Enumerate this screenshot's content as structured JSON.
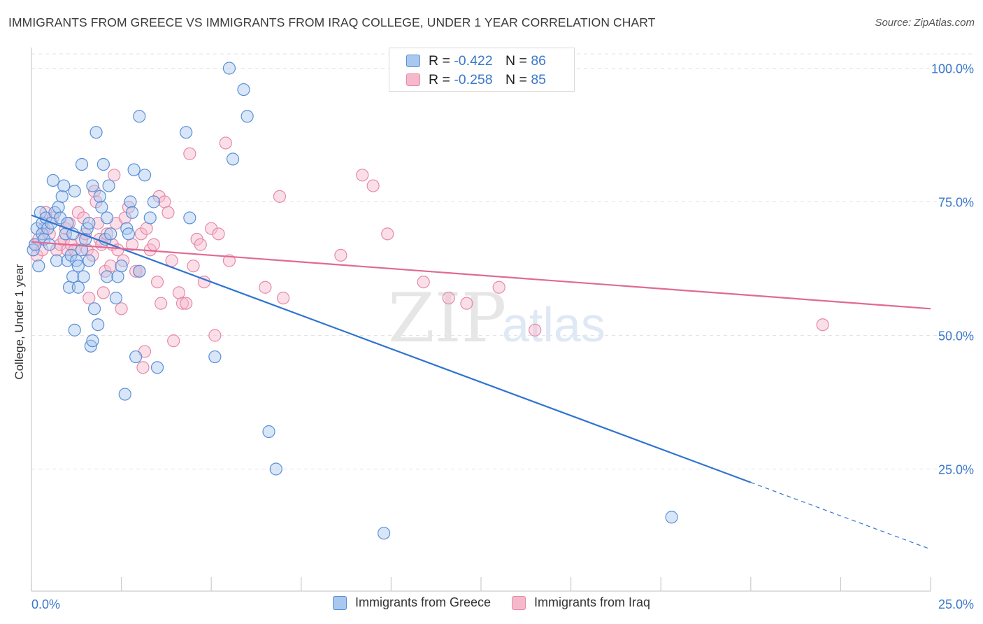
{
  "title": "IMMIGRANTS FROM GREECE VS IMMIGRANTS FROM IRAQ COLLEGE, UNDER 1 YEAR CORRELATION CHART",
  "source": "Source: ZipAtlas.com",
  "watermark": {
    "zip": "ZIP",
    "atlas": "atlas"
  },
  "colors": {
    "greece_fill": "#a9c8f0",
    "greece_stroke": "#5a8fd6",
    "greece_line": "#2f74d0",
    "iraq_fill": "#f6b9cb",
    "iraq_stroke": "#e58aa8",
    "iraq_line": "#e06a94",
    "tick_label": "#3a78c9",
    "grid": "#e3e3e3"
  },
  "legend_top": [
    {
      "r_label": "R = ",
      "r_value": "-0.422",
      "n_label": "N = ",
      "n_value": "86"
    },
    {
      "r_label": "R = ",
      "r_value": "-0.258",
      "n_label": "N = ",
      "n_value": "85"
    }
  ],
  "legend_bottom": [
    "Immigrants from Greece",
    "Immigrants from Iraq"
  ],
  "chart_data": {
    "type": "scatter",
    "title": "IMMIGRANTS FROM GREECE VS IMMIGRANTS FROM IRAQ COLLEGE, UNDER 1 YEAR CORRELATION CHART",
    "xlabel": "",
    "ylabel": "College, Under 1 year",
    "xlim": [
      0,
      25
    ],
    "ylim": [
      0,
      105
    ],
    "x_tick_labels": [
      "0.0%",
      "25.0%"
    ],
    "y_ticks": [
      25,
      50,
      75,
      100
    ],
    "y_tick_labels": [
      "25.0%",
      "50.0%",
      "75.0%",
      "100.0%"
    ],
    "grid": true,
    "legend_placement": "bottom",
    "series": [
      {
        "name": "Immigrants from Greece",
        "r": -0.422,
        "n": 86,
        "trend": {
          "x0": 0,
          "y0": 72.5,
          "x1": 20,
          "y1": 22.5,
          "dashed_to_x": 25,
          "dashed_y_end": 10
        },
        "points": [
          [
            0.05,
            66
          ],
          [
            0.1,
            67
          ],
          [
            0.15,
            70
          ],
          [
            0.2,
            63
          ],
          [
            0.25,
            73
          ],
          [
            0.3,
            71
          ],
          [
            0.3,
            69
          ],
          [
            0.35,
            68
          ],
          [
            0.4,
            72
          ],
          [
            0.45,
            70
          ],
          [
            0.5,
            67
          ],
          [
            0.55,
            71
          ],
          [
            0.6,
            79
          ],
          [
            0.65,
            73
          ],
          [
            0.7,
            64
          ],
          [
            0.75,
            74
          ],
          [
            0.8,
            72
          ],
          [
            0.85,
            76
          ],
          [
            0.9,
            78
          ],
          [
            0.95,
            69
          ],
          [
            1.0,
            64
          ],
          [
            1.0,
            71
          ],
          [
            1.05,
            59
          ],
          [
            1.1,
            65
          ],
          [
            1.15,
            61
          ],
          [
            1.15,
            69
          ],
          [
            1.2,
            51
          ],
          [
            1.2,
            77
          ],
          [
            1.25,
            64
          ],
          [
            1.3,
            59
          ],
          [
            1.3,
            63
          ],
          [
            1.4,
            66
          ],
          [
            1.4,
            82
          ],
          [
            1.45,
            61
          ],
          [
            1.5,
            68
          ],
          [
            1.55,
            70
          ],
          [
            1.6,
            71
          ],
          [
            1.6,
            64
          ],
          [
            1.65,
            48
          ],
          [
            1.7,
            49
          ],
          [
            1.7,
            78
          ],
          [
            1.75,
            55
          ],
          [
            1.8,
            88
          ],
          [
            1.85,
            52
          ],
          [
            1.9,
            76
          ],
          [
            1.95,
            74
          ],
          [
            2.0,
            82
          ],
          [
            2.05,
            68
          ],
          [
            2.1,
            72
          ],
          [
            2.1,
            61
          ],
          [
            2.15,
            78
          ],
          [
            2.2,
            69
          ],
          [
            2.35,
            57
          ],
          [
            2.4,
            61
          ],
          [
            2.5,
            63
          ],
          [
            2.6,
            39
          ],
          [
            2.65,
            70
          ],
          [
            2.7,
            69
          ],
          [
            2.75,
            75
          ],
          [
            2.8,
            73
          ],
          [
            2.85,
            81
          ],
          [
            2.9,
            46
          ],
          [
            3.0,
            62
          ],
          [
            3.0,
            91
          ],
          [
            3.15,
            80
          ],
          [
            3.3,
            72
          ],
          [
            3.4,
            75
          ],
          [
            3.5,
            44
          ],
          [
            4.3,
            88
          ],
          [
            4.4,
            72
          ],
          [
            5.1,
            46
          ],
          [
            5.5,
            100
          ],
          [
            5.6,
            83
          ],
          [
            5.9,
            96
          ],
          [
            6.0,
            91
          ],
          [
            6.6,
            32
          ],
          [
            6.8,
            25
          ],
          [
            9.8,
            13
          ],
          [
            17.8,
            16
          ]
        ]
      },
      {
        "name": "Immigrants from Iraq",
        "r": -0.258,
        "n": 85,
        "trend": {
          "x0": 0,
          "y0": 67.5,
          "x1": 25,
          "y1": 55
        },
        "points": [
          [
            0.1,
            67
          ],
          [
            0.15,
            65
          ],
          [
            0.2,
            68
          ],
          [
            0.3,
            66
          ],
          [
            0.35,
            70
          ],
          [
            0.4,
            73
          ],
          [
            0.5,
            69
          ],
          [
            0.6,
            72
          ],
          [
            0.7,
            66
          ],
          [
            0.8,
            67
          ],
          [
            0.9,
            68
          ],
          [
            0.95,
            70
          ],
          [
            1.0,
            66
          ],
          [
            1.05,
            71
          ],
          [
            1.1,
            67
          ],
          [
            1.2,
            66
          ],
          [
            1.3,
            73
          ],
          [
            1.4,
            68
          ],
          [
            1.45,
            72
          ],
          [
            1.5,
            69
          ],
          [
            1.55,
            66
          ],
          [
            1.6,
            57
          ],
          [
            1.7,
            65
          ],
          [
            1.75,
            77
          ],
          [
            1.8,
            75
          ],
          [
            1.85,
            71
          ],
          [
            1.9,
            68
          ],
          [
            1.95,
            67
          ],
          [
            2.0,
            58
          ],
          [
            2.05,
            62
          ],
          [
            2.1,
            69
          ],
          [
            2.2,
            63
          ],
          [
            2.25,
            67
          ],
          [
            2.3,
            80
          ],
          [
            2.35,
            71
          ],
          [
            2.4,
            66
          ],
          [
            2.5,
            55
          ],
          [
            2.55,
            64
          ],
          [
            2.6,
            72
          ],
          [
            2.7,
            74
          ],
          [
            2.8,
            67
          ],
          [
            2.9,
            62
          ],
          [
            3.0,
            62
          ],
          [
            3.05,
            69
          ],
          [
            3.1,
            44
          ],
          [
            3.15,
            47
          ],
          [
            3.2,
            70
          ],
          [
            3.3,
            66
          ],
          [
            3.4,
            67
          ],
          [
            3.5,
            60
          ],
          [
            3.55,
            76
          ],
          [
            3.6,
            56
          ],
          [
            3.7,
            75
          ],
          [
            3.8,
            73
          ],
          [
            3.9,
            64
          ],
          [
            3.95,
            49
          ],
          [
            4.1,
            58
          ],
          [
            4.2,
            56
          ],
          [
            4.3,
            56
          ],
          [
            4.4,
            84
          ],
          [
            4.5,
            63
          ],
          [
            4.6,
            68
          ],
          [
            4.7,
            67
          ],
          [
            4.8,
            60
          ],
          [
            5.0,
            70
          ],
          [
            5.1,
            50
          ],
          [
            5.2,
            69
          ],
          [
            5.4,
            86
          ],
          [
            5.5,
            64
          ],
          [
            6.5,
            59
          ],
          [
            6.9,
            76
          ],
          [
            7.0,
            57
          ],
          [
            8.6,
            65
          ],
          [
            9.2,
            80
          ],
          [
            9.5,
            78
          ],
          [
            9.9,
            69
          ],
          [
            10.9,
            60
          ],
          [
            11.6,
            57
          ],
          [
            12.1,
            56
          ],
          [
            13.0,
            59
          ],
          [
            14.0,
            51
          ],
          [
            22.0,
            52
          ]
        ]
      }
    ]
  }
}
